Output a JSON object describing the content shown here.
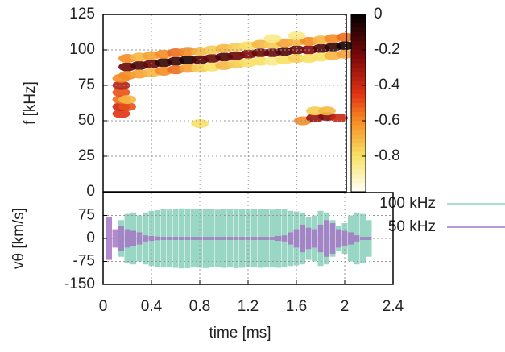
{
  "chart_data": [
    {
      "type": "heatmap",
      "ylabel": "f [kHz]",
      "xlim": [
        0,
        2.01
      ],
      "xticks": [
        0.4,
        0.8,
        1.2,
        1.6,
        2
      ],
      "ylim": [
        0,
        125
      ],
      "yticks": [
        0,
        25,
        50,
        75,
        100,
        125
      ],
      "clim": [
        -1,
        0
      ],
      "cticks": [
        0,
        -0.2,
        -0.4,
        -0.6,
        -0.8
      ],
      "grid": true,
      "heat": {
        "t": [
          0.2,
          0.3,
          0.4,
          0.5,
          0.6,
          0.7,
          0.8,
          0.9,
          1.0,
          1.1,
          1.2,
          1.3,
          1.4,
          1.5,
          1.6,
          1.7,
          1.8,
          1.9,
          2.0,
          0.2,
          0.3,
          0.4,
          0.5,
          0.6,
          0.7,
          0.8,
          0.9,
          1.0,
          1.1,
          1.2,
          1.3,
          1.4,
          1.5,
          1.6,
          1.7,
          1.8,
          1.9,
          2.0,
          0.2,
          0.3,
          0.4,
          0.5,
          0.6,
          0.7,
          0.8,
          0.9,
          1.0,
          1.1,
          1.2,
          1.3,
          1.4,
          1.5,
          1.6,
          1.7,
          1.8,
          1.9,
          2.0,
          0.15,
          0.15,
          0.15,
          0.15,
          0.15,
          0.15,
          0.2,
          0.2,
          0.8,
          1.65,
          1.75,
          1.85,
          1.95,
          1.75,
          1.85,
          1.4,
          1.6
        ],
        "f": [
          88,
          89,
          90,
          91,
          92,
          93,
          93,
          94,
          95,
          96,
          97,
          98,
          98,
          99,
          100,
          100,
          101,
          102,
          103,
          94,
          95,
          96,
          97,
          98,
          99,
          99,
          100,
          101,
          102,
          103,
          104,
          104,
          105,
          106,
          106,
          107,
          108,
          109,
          82,
          83,
          84,
          85,
          86,
          87,
          87,
          88,
          89,
          90,
          91,
          92,
          92,
          93,
          94,
          94,
          95,
          96,
          97,
          55,
          60,
          65,
          70,
          75,
          80,
          60,
          65,
          48,
          50,
          52,
          53,
          52,
          57,
          57,
          108,
          110
        ],
        "level": [
          -0.2,
          -0.15,
          -0.2,
          -0.1,
          -0.1,
          -0.05,
          -0.15,
          -0.2,
          -0.15,
          -0.2,
          -0.25,
          -0.2,
          -0.2,
          -0.15,
          -0.2,
          -0.25,
          -0.15,
          -0.1,
          -0.05,
          -0.6,
          -0.7,
          -0.65,
          -0.6,
          -0.55,
          -0.6,
          -0.7,
          -0.75,
          -0.7,
          -0.75,
          -0.8,
          -0.7,
          -0.75,
          -0.65,
          -0.7,
          -0.6,
          -0.7,
          -0.6,
          -0.55,
          -0.6,
          -0.65,
          -0.7,
          -0.6,
          -0.55,
          -0.65,
          -0.75,
          -0.8,
          -0.7,
          -0.75,
          -0.8,
          -0.8,
          -0.85,
          -0.8,
          -0.75,
          -0.8,
          -0.8,
          -0.7,
          -0.65,
          -0.45,
          -0.4,
          -0.55,
          -0.5,
          -0.35,
          -0.6,
          -0.5,
          -0.7,
          -0.8,
          -0.6,
          -0.3,
          -0.25,
          -0.4,
          -0.75,
          -0.7,
          -0.85,
          -0.85
        ]
      }
    },
    {
      "type": "line",
      "xlabel": "time [ms]",
      "ylabel": "vθ [km/s]",
      "xlim": [
        0,
        2.4
      ],
      "xticks": [
        0,
        0.4,
        0.8,
        1.2,
        1.6,
        2,
        2.4
      ],
      "ylim": [
        -150,
        150
      ],
      "yticks": [
        -150,
        -75,
        0,
        75
      ],
      "grid": true,
      "x": [
        0.05,
        0.1,
        0.15,
        0.2,
        0.25,
        0.3,
        0.35,
        0.4,
        0.45,
        0.5,
        0.55,
        0.6,
        0.65,
        0.7,
        0.75,
        0.8,
        0.85,
        0.9,
        0.95,
        1.0,
        1.05,
        1.1,
        1.15,
        1.2,
        1.25,
        1.3,
        1.35,
        1.4,
        1.45,
        1.5,
        1.55,
        1.6,
        1.65,
        1.7,
        1.75,
        1.8,
        1.85,
        1.9,
        1.95,
        2.0,
        2.05,
        2.1,
        2.15,
        2.2
      ],
      "series": [
        {
          "name": "100 kHz",
          "color": "#8fd3be",
          "values": [
            0,
            0,
            60,
            80,
            85,
            75,
            85,
            90,
            92,
            95,
            94,
            96,
            98,
            97,
            95,
            96,
            97,
            95,
            94,
            96,
            95,
            97,
            96,
            94,
            95,
            96,
            95,
            94,
            96,
            95,
            90,
            88,
            85,
            70,
            75,
            90,
            85,
            60,
            40,
            50,
            75,
            85,
            80,
            60
          ]
        },
        {
          "name": "50 kHz",
          "color": "#a477c4",
          "values": [
            70,
            30,
            40,
            30,
            25,
            20,
            10,
            8,
            6,
            5,
            5,
            5,
            5,
            5,
            5,
            5,
            5,
            5,
            5,
            5,
            5,
            5,
            5,
            5,
            5,
            5,
            5,
            5,
            8,
            10,
            20,
            30,
            45,
            35,
            30,
            45,
            60,
            50,
            30,
            25,
            20,
            10,
            5,
            5
          ]
        }
      ]
    }
  ]
}
